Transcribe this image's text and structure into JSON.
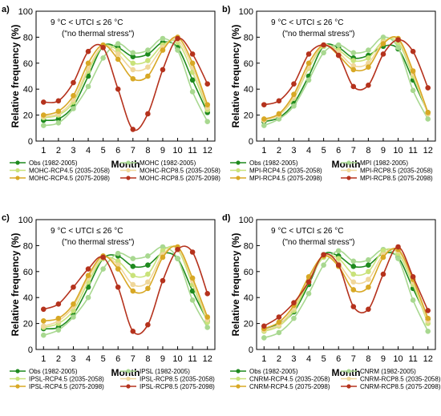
{
  "figure": {
    "ylabel": "Relative frequency (%)",
    "xlabel": "Month",
    "annotation_line1": "9 °C < UTCI ≤ 26 °C",
    "annotation_line2": "(\"no thermal stress\")"
  },
  "chart_data": [
    {
      "type": "line",
      "panel": "a)",
      "annotation": [
        "9 °C < UTCI ≤ 26 °C",
        "(\"no thermal stress\")"
      ],
      "xlabel": "Month",
      "ylabel": "Relative frequency (%)",
      "x": [
        1,
        2,
        3,
        4,
        5,
        6,
        7,
        8,
        9,
        10,
        11,
        12
      ],
      "xlim": [
        0.5,
        12.5
      ],
      "ylim": [
        0,
        100
      ],
      "yticks": [
        0,
        20,
        40,
        60,
        80,
        100
      ],
      "grid": false,
      "legend": "below",
      "series": [
        {
          "name": "Obs (1982-2005)",
          "color": "#1f8a1f",
          "values": [
            16,
            17,
            27,
            50,
            73,
            72,
            65,
            67,
            76,
            72,
            47,
            22
          ]
        },
        {
          "name": "MOHC (1982-2005)",
          "color": "#a8d890",
          "values": [
            12,
            14,
            25,
            42,
            64,
            75,
            68,
            70,
            79,
            70,
            38,
            15
          ]
        },
        {
          "name": "MOHC-RCP4.5 (2035-2058)",
          "color": "#c9e27a",
          "values": [
            18,
            20,
            30,
            54,
            73,
            70,
            60,
            62,
            74,
            76,
            53,
            24
          ]
        },
        {
          "name": "MOHC-RCP8.5 (2035-2058)",
          "color": "#f0d79a",
          "values": [
            19,
            21,
            32,
            56,
            73,
            67,
            55,
            57,
            72,
            78,
            57,
            26
          ]
        },
        {
          "name": "MOHC-RCP4.5 (2075-2098)",
          "color": "#d8a825",
          "values": [
            20,
            23,
            35,
            60,
            74,
            63,
            48,
            50,
            70,
            80,
            60,
            28
          ]
        },
        {
          "name": "MOHC-RCP8.5 (2075-2098)",
          "color": "#b5321d",
          "values": [
            30,
            31,
            45,
            69,
            72,
            40,
            9,
            21,
            55,
            79,
            67,
            44
          ]
        }
      ]
    },
    {
      "type": "line",
      "panel": "b)",
      "annotation": [
        "9 °C < UTCI ≤ 26 °C",
        "(\"no thermal stress\")"
      ],
      "xlabel": "Month",
      "ylabel": "Relative frequency (%)",
      "x": [
        1,
        2,
        3,
        4,
        5,
        6,
        7,
        8,
        9,
        10,
        11,
        12
      ],
      "xlim": [
        0.5,
        12.5
      ],
      "ylim": [
        0,
        100
      ],
      "yticks": [
        0,
        20,
        40,
        60,
        80,
        100
      ],
      "grid": false,
      "legend": "below",
      "series": [
        {
          "name": "Obs (1982-2005)",
          "color": "#1f8a1f",
          "values": [
            15,
            18,
            29,
            50,
            73,
            72,
            64,
            66,
            73,
            71,
            47,
            22
          ]
        },
        {
          "name": "MPI (1982-2005)",
          "color": "#a8d890",
          "values": [
            12,
            17,
            27,
            47,
            68,
            74,
            68,
            70,
            80,
            72,
            39,
            17
          ]
        },
        {
          "name": "MPI-RCP4.5 (2035-2058)",
          "color": "#c9e27a",
          "values": [
            16,
            20,
            33,
            56,
            73,
            70,
            62,
            64,
            77,
            76,
            50,
            21
          ]
        },
        {
          "name": "MPI-RCP8.5 (2035-2058)",
          "color": "#f0d79a",
          "values": [
            16,
            20,
            34,
            57,
            74,
            68,
            58,
            60,
            76,
            78,
            52,
            21
          ]
        },
        {
          "name": "MPI-RCP4.5 (2075-2098)",
          "color": "#d8a825",
          "values": [
            17,
            21,
            36,
            60,
            74,
            66,
            55,
            57,
            75,
            79,
            54,
            22
          ]
        },
        {
          "name": "MPI-RCP8.5 (2075-2098)",
          "color": "#b5321d",
          "values": [
            28,
            31,
            44,
            67,
            74,
            66,
            42,
            43,
            67,
            78,
            69,
            41
          ]
        }
      ]
    },
    {
      "type": "line",
      "panel": "c)",
      "annotation": [
        "9 °C < UTCI ≤ 26 °C",
        "(\"no thermal stress\")"
      ],
      "xlabel": "Month",
      "ylabel": "Relative frequency (%)",
      "x": [
        1,
        2,
        3,
        4,
        5,
        6,
        7,
        8,
        9,
        10,
        11,
        12
      ],
      "xlim": [
        0.5,
        12.5
      ],
      "ylim": [
        0,
        100
      ],
      "yticks": [
        0,
        20,
        40,
        60,
        80,
        100
      ],
      "grid": false,
      "legend": "below",
      "series": [
        {
          "name": "Obs (1982-2005)",
          "color": "#1f8a1f",
          "values": [
            16,
            17,
            27,
            48,
            70,
            72,
            64,
            65,
            74,
            70,
            45,
            22
          ]
        },
        {
          "name": "IPSL (1982-2005)",
          "color": "#a8d890",
          "values": [
            11,
            15,
            25,
            40,
            62,
            74,
            70,
            72,
            79,
            70,
            38,
            17
          ]
        },
        {
          "name": "IPSL-RCP4.5 (2035-2058)",
          "color": "#c9e27a",
          "values": [
            17,
            20,
            30,
            52,
            70,
            68,
            57,
            58,
            76,
            77,
            50,
            21
          ]
        },
        {
          "name": "IPSL-RCP8.5 (2035-2058)",
          "color": "#f0d79a",
          "values": [
            18,
            22,
            33,
            55,
            71,
            65,
            50,
            52,
            73,
            78,
            53,
            23
          ]
        },
        {
          "name": "IPSL-RCP4.5 (2075-2098)",
          "color": "#d8a825",
          "values": [
            22,
            24,
            35,
            57,
            72,
            62,
            45,
            47,
            71,
            79,
            55,
            25
          ]
        },
        {
          "name": "IPSL-RCP8.5 (2075-2098)",
          "color": "#b5321d",
          "values": [
            31,
            35,
            48,
            62,
            71,
            48,
            14,
            19,
            53,
            77,
            75,
            43
          ]
        }
      ]
    },
    {
      "type": "line",
      "panel": "d)",
      "annotation": [
        "9 °C < UTCI ≤ 26 °C",
        "(\"no thermal stress\")"
      ],
      "xlabel": "Month",
      "ylabel": "Relative frequency (%)",
      "x": [
        1,
        2,
        3,
        4,
        5,
        6,
        7,
        8,
        9,
        10,
        11,
        12
      ],
      "xlim": [
        0.5,
        12.5
      ],
      "ylim": [
        0,
        100
      ],
      "yticks": [
        0,
        20,
        40,
        60,
        80,
        100
      ],
      "grid": false,
      "legend": "below",
      "series": [
        {
          "name": "Obs (1982-2005)",
          "color": "#1f8a1f",
          "values": [
            16,
            20,
            29,
            50,
            73,
            72,
            64,
            65,
            74,
            71,
            47,
            23
          ]
        },
        {
          "name": "CNRM (1982-2005)",
          "color": "#a8d890",
          "values": [
            9,
            13,
            24,
            43,
            65,
            76,
            68,
            69,
            77,
            70,
            38,
            14
          ]
        },
        {
          "name": "CNRM-RCP4.5 (2035-2058)",
          "color": "#c9e27a",
          "values": [
            14,
            18,
            30,
            52,
            71,
            70,
            58,
            60,
            76,
            74,
            50,
            20
          ]
        },
        {
          "name": "CNRM-RCP8.5 (2035-2058)",
          "color": "#f0d79a",
          "values": [
            15,
            19,
            32,
            54,
            72,
            66,
            52,
            54,
            73,
            76,
            52,
            22
          ]
        },
        {
          "name": "CNRM-RCP4.5 (2075-2098)",
          "color": "#d8a825",
          "values": [
            16,
            21,
            34,
            56,
            72,
            64,
            46,
            48,
            71,
            77,
            54,
            24
          ]
        },
        {
          "name": "CNRM-RCP8.5 (2075-2098)",
          "color": "#b5321d",
          "values": [
            18,
            25,
            36,
            52,
            73,
            65,
            33,
            31,
            58,
            79,
            56,
            30
          ]
        }
      ]
    }
  ]
}
